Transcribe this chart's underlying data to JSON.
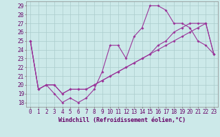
{
  "xlabel": "Windchill (Refroidissement éolien,°C)",
  "background_color": "#cce9e9",
  "grid_color": "#aacccc",
  "line_color": "#993399",
  "xlim": [
    -0.5,
    23.5
  ],
  "ylim": [
    17.5,
    29.5
  ],
  "xticks": [
    0,
    1,
    2,
    3,
    4,
    5,
    6,
    7,
    8,
    9,
    10,
    11,
    12,
    13,
    14,
    15,
    16,
    17,
    18,
    19,
    20,
    21,
    22,
    23
  ],
  "yticks": [
    18,
    19,
    20,
    21,
    22,
    23,
    24,
    25,
    26,
    27,
    28,
    29
  ],
  "line1_x": [
    0,
    1,
    2,
    3,
    4,
    5,
    6,
    7,
    8,
    9,
    10,
    11,
    12,
    13,
    14,
    15,
    16,
    17,
    18,
    19,
    20,
    21,
    22,
    23
  ],
  "line1_y": [
    25.0,
    19.5,
    20.0,
    19.0,
    18.0,
    18.5,
    18.0,
    18.5,
    19.5,
    21.5,
    24.5,
    24.5,
    23.0,
    25.5,
    26.5,
    29.0,
    29.0,
    28.5,
    27.0,
    27.0,
    26.5,
    25.0,
    24.5,
    23.5
  ],
  "line2_x": [
    0,
    1,
    2,
    3,
    4,
    5,
    6,
    7,
    8,
    9,
    10,
    11,
    12,
    13,
    14,
    15,
    16,
    17,
    18,
    19,
    20,
    21,
    22,
    23
  ],
  "line2_y": [
    25.0,
    19.5,
    20.0,
    20.0,
    19.0,
    19.5,
    19.5,
    19.5,
    20.0,
    20.5,
    21.0,
    21.5,
    22.0,
    22.5,
    23.0,
    23.5,
    24.5,
    25.0,
    26.0,
    26.5,
    27.0,
    27.0,
    27.0,
    23.5
  ],
  "line3_x": [
    0,
    1,
    2,
    3,
    4,
    5,
    6,
    7,
    8,
    9,
    10,
    11,
    12,
    13,
    14,
    15,
    16,
    17,
    18,
    19,
    20,
    21,
    22,
    23
  ],
  "line3_y": [
    25.0,
    19.5,
    20.0,
    20.0,
    19.0,
    19.5,
    19.5,
    19.5,
    20.0,
    20.5,
    21.0,
    21.5,
    22.0,
    22.5,
    23.0,
    23.5,
    24.0,
    24.5,
    25.0,
    25.5,
    26.0,
    26.5,
    27.0,
    23.5
  ],
  "marker_size": 2,
  "line_width": 0.8,
  "xlabel_fontsize": 6,
  "tick_fontsize": 5.5
}
